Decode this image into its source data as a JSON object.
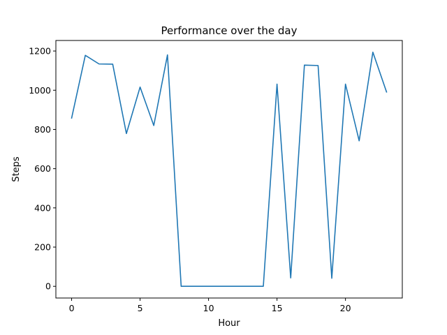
{
  "chart_data": {
    "type": "line",
    "title": "Performance over the day",
    "xlabel": "Hour",
    "ylabel": "Steps",
    "xlim": [
      -1.15,
      24.15
    ],
    "ylim": [
      -59.7,
      1253.7
    ],
    "xticks": [
      0,
      5,
      10,
      15,
      20
    ],
    "yticks": [
      0,
      200,
      400,
      600,
      800,
      1000,
      1200
    ],
    "grid": false,
    "legend": "none",
    "series": [
      {
        "color": "#1f77b4",
        "x": [
          0,
          1,
          2,
          3,
          4,
          5,
          6,
          7,
          8,
          9,
          10,
          11,
          12,
          13,
          14,
          15,
          16,
          17,
          18,
          19,
          20,
          21,
          22,
          23
        ],
        "values": [
          858,
          1178,
          1134,
          1133,
          779,
          1016,
          820,
          1180,
          0,
          0,
          0,
          0,
          0,
          0,
          0,
          1031,
          43,
          1128,
          1126,
          41,
          1031,
          742,
          1194,
          991
        ]
      }
    ]
  }
}
